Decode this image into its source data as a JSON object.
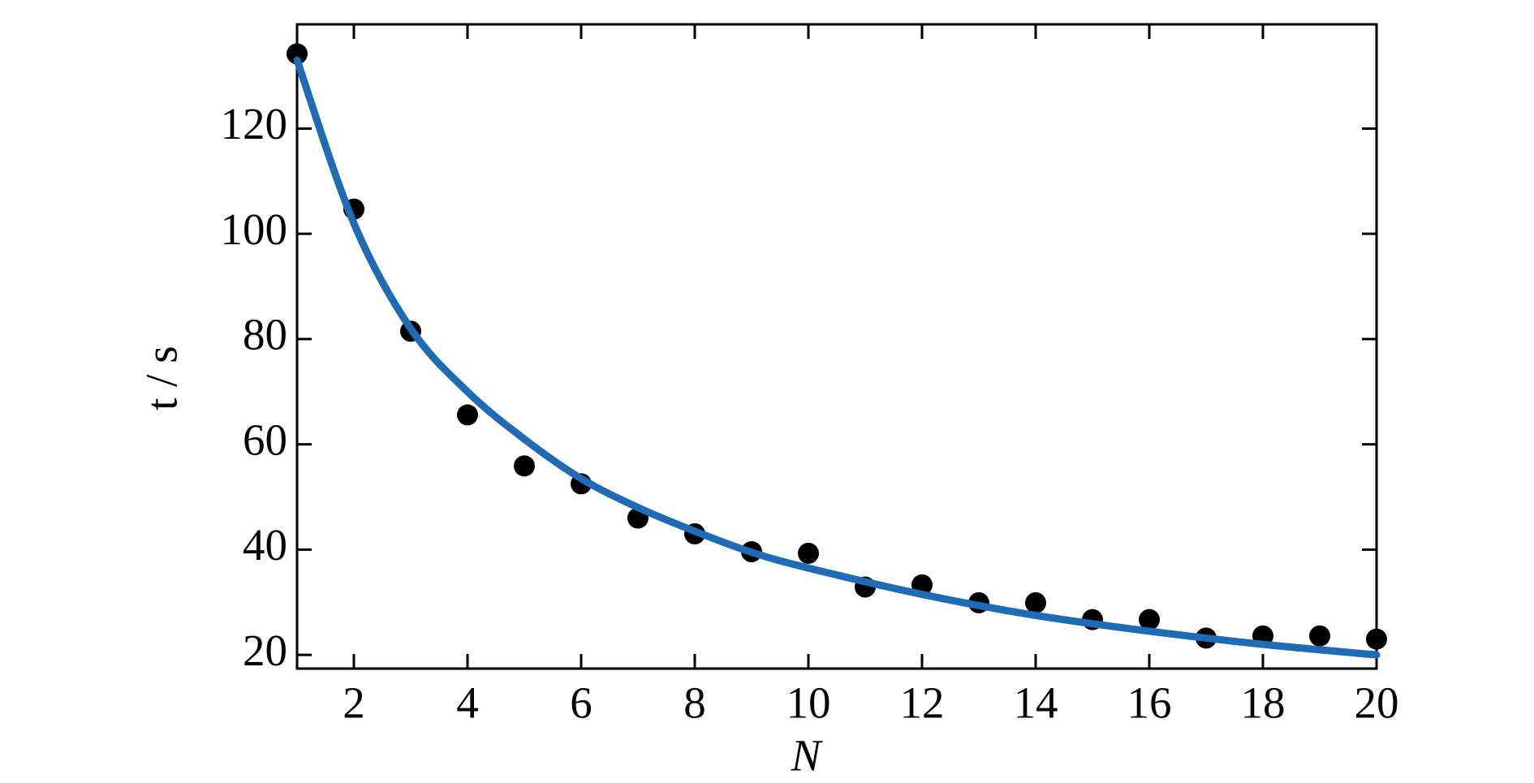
{
  "chart_data": {
    "type": "scatter",
    "x_label": "N",
    "y_label": "t / s",
    "xlim": [
      1,
      20
    ],
    "ylim": [
      17.4,
      139.8
    ],
    "xticks": [
      2,
      4,
      6,
      8,
      10,
      12,
      14,
      16,
      18,
      20
    ],
    "yticks": [
      20,
      40,
      60,
      80,
      100,
      120
    ],
    "series": [
      {
        "type": "scatter",
        "color": "#000000",
        "x": [
          1,
          2,
          3,
          4,
          5,
          6,
          7,
          8,
          9,
          10,
          11,
          12,
          13,
          14,
          15,
          16,
          17,
          18,
          19,
          20
        ],
        "values": [
          134.2,
          104.7,
          81.5,
          65.6,
          55.9,
          52.5,
          46,
          43,
          39.6,
          39.3,
          32.9,
          33.3,
          29.9,
          29.9,
          26.7,
          26.7,
          23.2,
          23.6,
          23.6,
          23
        ]
      },
      {
        "type": "line",
        "color": "#1f6bb5",
        "x": [
          1,
          2,
          3,
          4,
          5,
          6,
          7,
          8,
          9,
          10,
          12,
          14,
          16,
          18,
          20
        ],
        "values": [
          133,
          102,
          82,
          70,
          61,
          53.5,
          48,
          43.5,
          39.5,
          36.5,
          31.5,
          27.5,
          24.5,
          22,
          20
        ]
      }
    ]
  }
}
